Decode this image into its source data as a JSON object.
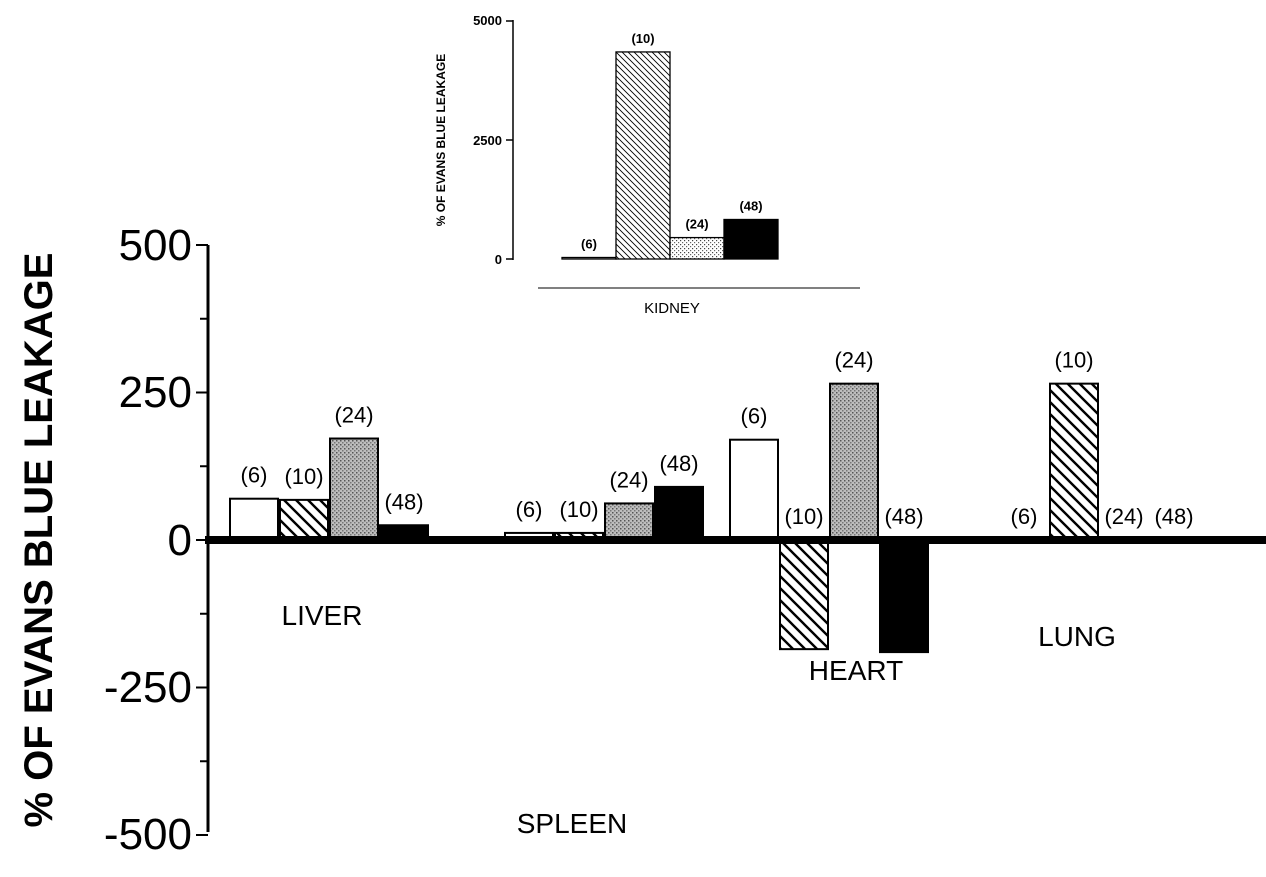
{
  "main_chart": {
    "ylabel": "% OF EVANS BLUE LEAKAGE",
    "ytick_labels": [
      "500",
      "250",
      "0",
      "-250",
      "-500"
    ]
  },
  "inset_chart": {
    "ylabel": "% OF EVANS BLUE LEAKAGE",
    "ytick_labels": [
      "5000",
      "2500",
      "0"
    ],
    "category_label": "KIDNEY"
  },
  "chart_data": [
    {
      "type": "bar",
      "title": "",
      "xlabel": "",
      "ylabel": "% OF EVANS BLUE LEAKAGE",
      "ylim": [
        -500,
        500
      ],
      "yticks": [
        -500,
        -250,
        0,
        250,
        500
      ],
      "categories": [
        "LIVER",
        "SPLEEN",
        "HEART",
        "LUNG"
      ],
      "groups": [
        "(6)",
        "(10)",
        "(24)",
        "(48)"
      ],
      "group_fills": [
        "white",
        "diagonal-hatch",
        "stipple",
        "black"
      ],
      "values": [
        [
          70,
          68,
          172,
          25
        ],
        [
          12,
          12,
          62,
          90
        ],
        [
          170,
          -185,
          265,
          -190
        ],
        [
          0,
          265,
          0,
          0
        ]
      ]
    },
    {
      "type": "bar",
      "title": "",
      "xlabel": "",
      "ylabel": "% OF EVANS BLUE LEAKAGE",
      "ylim": [
        0,
        5000
      ],
      "yticks": [
        0,
        2500,
        5000
      ],
      "categories": [
        "KIDNEY"
      ],
      "groups": [
        "(6)",
        "(10)",
        "(24)",
        "(48)"
      ],
      "group_fills": [
        "white",
        "diagonal-hatch",
        "stipple",
        "black"
      ],
      "values": [
        [
          20,
          4350,
          450,
          830
        ]
      ]
    }
  ]
}
